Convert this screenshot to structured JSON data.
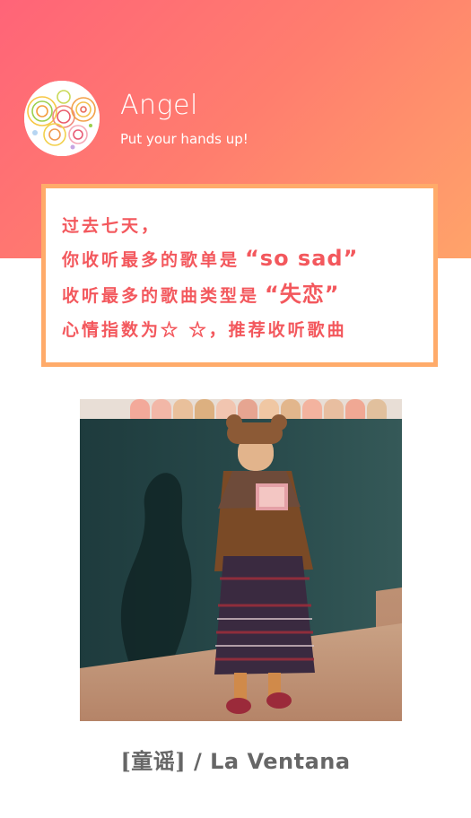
{
  "profile": {
    "name": "Angel",
    "tagline": "Put your hands up!"
  },
  "summary": {
    "line1": "过去七天，",
    "line2_prefix": "你收听最多的歌单是",
    "line2_highlight": "“so sad”",
    "line3_prefix": "收听最多的歌曲类型是",
    "line3_highlight": "“失恋”",
    "line4": "心情指数为☆ ☆，推荐收听歌曲"
  },
  "song": {
    "tag": "[童谣]",
    "separator": " / ",
    "title": "La Ventana"
  },
  "colors": {
    "gradient_start": "#ff6478",
    "gradient_end": "#ffa36a",
    "card_border": "#ffab6a",
    "card_text": "#f3585d",
    "caption_text": "#666666"
  }
}
